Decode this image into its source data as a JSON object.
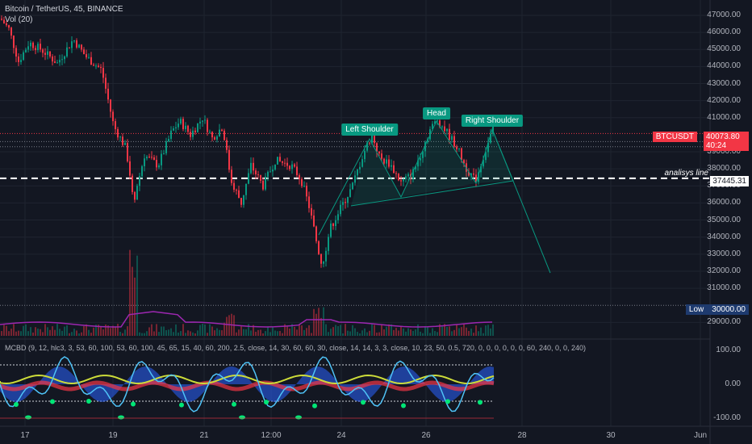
{
  "header": {
    "title": "Bitcoin / TetherUS, 45, BINANCE",
    "indicator": "Vol (20)"
  },
  "oscillator_legend": "MCBD (9, 12, hlc3, 3, 53, 60, 100, 53, 60, 100, 45, 65, 15, 40, 60, 200, 2.5, close, 14, 30, 60, 60, 30, close, 14, 14, 3, 3, close, 10, 23, 50, 0.5, 720, 0, 0, 0, 0, 0, 0, 60, 240, 0, 0, 240)",
  "price_axis": [
    "47000.00",
    "46000.00",
    "45000.00",
    "44000.00",
    "43000.00",
    "42000.00",
    "41000.00",
    "39000.00",
    "38000.00",
    "37000.00",
    "36000.00",
    "35000.00",
    "34000.00",
    "33000.00",
    "32000.00",
    "31000.00",
    "29000.00"
  ],
  "osc_axis": [
    "100.00",
    "0.00",
    "-100.00"
  ],
  "time_axis": [
    "17",
    "19",
    "21",
    "12:00",
    "24",
    "26",
    "28",
    "30",
    "Jun"
  ],
  "annotations": {
    "left_shoulder": "Left Shoulder",
    "head": "Head",
    "right_shoulder": "Right Shoulder",
    "analysis_line": "analisys line",
    "analysis_price": "37445.31",
    "symbol": "BTCUSDT",
    "last_price": "40073.80",
    "countdown": "40:24",
    "low_label": "Low",
    "low_price": "30000.00"
  },
  "colors": {
    "background": "#131722",
    "up": "#089981",
    "down": "#f23645",
    "pattern": "#089981",
    "volume_ma": "#9c27b0",
    "low_badge": "#1e3a6e"
  },
  "chart_data": {
    "type": "line",
    "title": "Bitcoin / TetherUS, 45, BINANCE",
    "ylim": [
      29000,
      47000
    ],
    "head_and_shoulders": [
      {
        "point": "left shoulder",
        "value": 40000
      },
      {
        "point": "head",
        "value": 40900
      },
      {
        "point": "right shoulder",
        "value": 40300
      }
    ],
    "neckline_value": 37445.31,
    "support_value": 30000
  }
}
